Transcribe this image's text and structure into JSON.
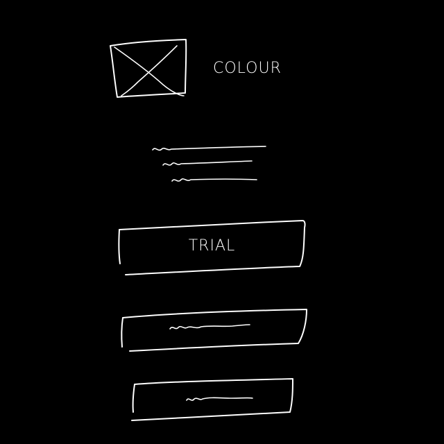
{
  "header": {
    "image_placeholder_icon": "image-placeholder-icon",
    "colour_label": "COLOUR"
  },
  "description": {
    "lines": [
      "placeholder-text-line",
      "placeholder-text-line",
      "placeholder-text-line"
    ]
  },
  "buttons": {
    "trial_label": "TRIAL",
    "secondary_label_placeholder": "placeholder-text-line",
    "tertiary_label_placeholder": "placeholder-text-line"
  },
  "colors": {
    "background": "#000000",
    "stroke": "#ffffff"
  }
}
